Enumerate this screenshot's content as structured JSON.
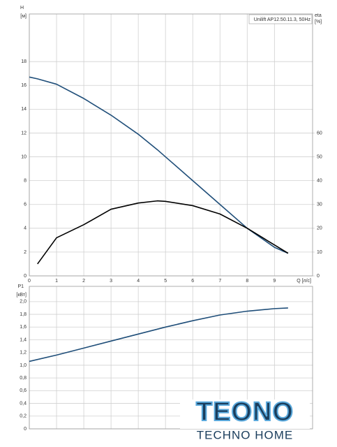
{
  "chart_data": [
    {
      "type": "line",
      "title": "Unilift AP12.50.11.3, 50Hz",
      "ylabel": "H",
      "yunit": "[м]",
      "y2label": "eta",
      "y2unit": "[%]",
      "xlabel": "Q [л/с]",
      "x": [
        0,
        0.3,
        1,
        2,
        3,
        4,
        4.7,
        5,
        6,
        7,
        8,
        9,
        9.5
      ],
      "series": [
        {
          "name": "H",
          "color": "#1f4e79",
          "values": [
            16.7,
            16.55,
            16.1,
            14.9,
            13.5,
            11.9,
            10.6,
            10.0,
            8.0,
            6.0,
            4.0,
            2.4,
            1.9
          ]
        },
        {
          "name": "eta",
          "color": "#000000",
          "axis": "y2",
          "values": [
            null,
            5,
            16,
            21.5,
            28,
            30.6,
            31.5,
            31.3,
            29.5,
            26,
            20,
            13,
            9.5
          ]
        }
      ],
      "xlim": [
        0,
        10.4
      ],
      "xticks": [
        0,
        1,
        2,
        3,
        4,
        5,
        6,
        7,
        8,
        9
      ],
      "ylim": [
        0,
        22
      ],
      "yticks": [
        0,
        2,
        4,
        6,
        8,
        10,
        12,
        14,
        16,
        18
      ],
      "y2lim": [
        0,
        110
      ],
      "y2ticks": [
        0,
        10,
        20,
        30,
        40,
        50,
        60
      ],
      "grid": true
    },
    {
      "type": "line",
      "ylabel": "P1",
      "yunit": "[кВт]",
      "x": [
        0,
        1,
        2,
        3,
        4,
        5,
        6,
        7,
        8,
        9,
        9.5
      ],
      "series": [
        {
          "name": "P1",
          "color": "#1f4e79",
          "values": [
            1.06,
            1.16,
            1.27,
            1.38,
            1.49,
            1.6,
            1.7,
            1.79,
            1.85,
            1.89,
            1.9
          ]
        }
      ],
      "xlim": [
        0,
        10.4
      ],
      "xticks": [
        0,
        1,
        2,
        3,
        4,
        5,
        6,
        7,
        8,
        9
      ],
      "ylim": [
        0,
        2.24
      ],
      "yticks": [
        0,
        {
          "value": 0.2,
          "label": "0,2"
        },
        {
          "value": 0.4,
          "label": "0,4"
        },
        {
          "value": 0.6,
          "label": "0,6"
        },
        {
          "value": 0.8,
          "label": "0,8"
        },
        {
          "value": 1.0,
          "label": "1,0"
        },
        {
          "value": 1.2,
          "label": "1,2"
        },
        {
          "value": 1.4,
          "label": "1,4"
        },
        {
          "value": 1.6,
          "label": "1,6"
        },
        {
          "value": 1.8,
          "label": "1,8"
        },
        {
          "value": 2.0,
          "label": "2,0"
        }
      ],
      "grid": true
    }
  ],
  "logo": {
    "title": "TEONO",
    "subtitle": "TECHNO HOME"
  }
}
